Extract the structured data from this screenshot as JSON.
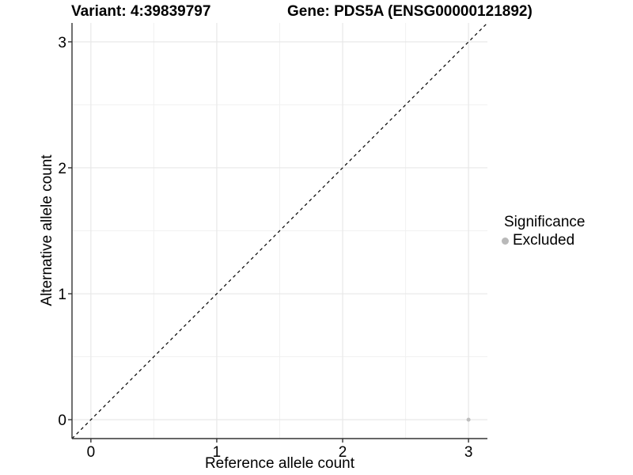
{
  "titles": {
    "variant": "Variant: 4:39839797",
    "gene": "Gene: PDS5A (ENSG00000121892)"
  },
  "chart_data": {
    "type": "scatter",
    "xlabel": "Reference allele count",
    "ylabel": "Alternative allele count",
    "xlim": [
      -0.15,
      3.15
    ],
    "ylim": [
      -0.15,
      3.15
    ],
    "xticks": [
      0,
      1,
      2,
      3
    ],
    "yticks": [
      0,
      1,
      2,
      3
    ],
    "minor_xticks": [
      0.5,
      1.5,
      2.5
    ],
    "minor_yticks": [
      0.5,
      1.5,
      2.5
    ],
    "grid": "major and minor, light gray, on white panel",
    "reference_line": {
      "description": "identity line y = x across full panel",
      "style": "dashed",
      "color": "#000000"
    },
    "series": [
      {
        "name": "Excluded",
        "color": "#bdbdbd",
        "points": [
          {
            "x": 3,
            "y": 0
          }
        ]
      }
    ],
    "legend": {
      "title": "Significance",
      "position": "right",
      "items": [
        {
          "label": "Excluded",
          "color": "#b9b9b9"
        }
      ]
    },
    "colors": {
      "grid_major": "#e8e8e8",
      "grid_minor": "#f1f1f1",
      "axis_line": "#333333",
      "tick_text": "#000000"
    }
  }
}
